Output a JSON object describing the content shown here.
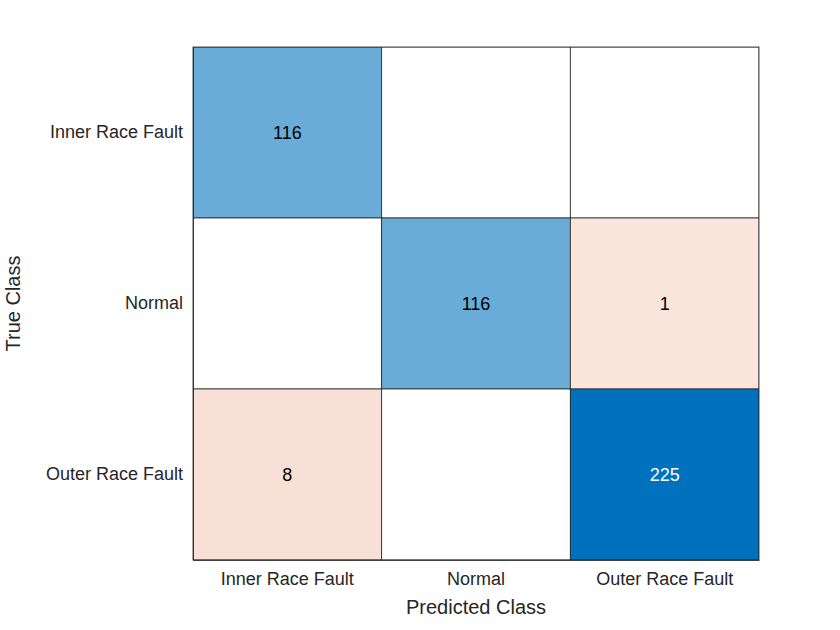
{
  "chart_data": {
    "type": "heatmap",
    "x_label": "Predicted Class",
    "y_label": "True Class",
    "x": [
      "Inner Race Fault",
      "Normal",
      "Outer Race Fault"
    ],
    "y": [
      "Inner Race Fault",
      "Normal",
      "Outer Race Fault"
    ],
    "cells": [
      [
        116,
        null,
        null
      ],
      [
        null,
        116,
        1
      ],
      [
        8,
        null,
        225
      ]
    ],
    "data_labels": true
  }
}
